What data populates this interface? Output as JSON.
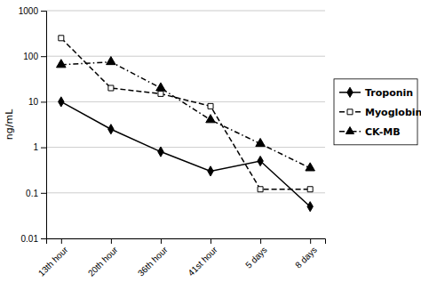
{
  "chart_data": {
    "type": "line",
    "categories": [
      "13th hour",
      "20th hour",
      "36th hour",
      "41st hour",
      "5 days",
      "8 days"
    ],
    "series": [
      {
        "name": "Troponin",
        "color": "#000000",
        "values": [
          10,
          2.5,
          0.8,
          0.3,
          0.5,
          0.05
        ],
        "marker": "diamond",
        "line_style": "solid"
      },
      {
        "name": "Myoglobin",
        "color": "#000000",
        "values": [
          250,
          20,
          15,
          8,
          0.12,
          0.12
        ],
        "marker": "square-open",
        "line_style": "dashed"
      },
      {
        "name": "CK-MB",
        "color": "#000000",
        "values": [
          65,
          75,
          20,
          4,
          1.2,
          0.35
        ],
        "marker": "triangle",
        "line_style": "dashdot"
      }
    ],
    "y_label": "ng/mL",
    "ylim": [
      0.01,
      1000
    ],
    "yticks": [
      0.01,
      0.1,
      1,
      10,
      100,
      1000
    ],
    "log": "y",
    "grid": true,
    "legend": "right"
  }
}
